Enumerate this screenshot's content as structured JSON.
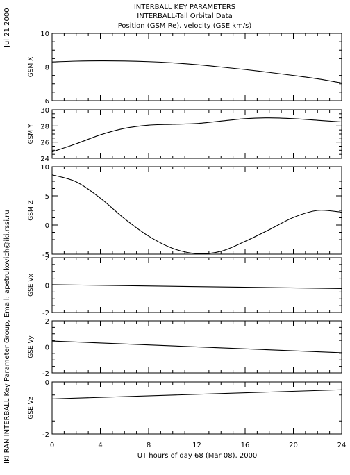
{
  "header": {
    "line1": "INTERBALL KEY PARAMETERS",
    "line2": "INTERBALL-Tail Orbital Data",
    "line3": "Position (GSM Re), velocity (GSE km/s)"
  },
  "side": {
    "date": "Jul 21 2000",
    "credit": "IKI RAN INTERBALL Key Parameter Group, Email: apetrukovich@iki.rssi.ru"
  },
  "chart_data": {
    "type": "line",
    "xlabel": "UT hours of day  68 (Mar 08), 2000",
    "xlim": [
      0,
      24
    ],
    "xticks": [
      0,
      4,
      8,
      12,
      16,
      20,
      24
    ],
    "panels": [
      {
        "ylabel": "GSM X",
        "ylim": [
          6,
          10
        ],
        "yticks": [
          6,
          8,
          10
        ],
        "x": [
          0,
          2,
          4,
          6,
          8,
          10,
          12,
          14,
          16,
          18,
          20,
          22,
          24
        ],
        "y": [
          8.3,
          8.35,
          8.37,
          8.36,
          8.32,
          8.25,
          8.14,
          8.0,
          7.85,
          7.68,
          7.5,
          7.3,
          7.05
        ]
      },
      {
        "ylabel": "GSM Y",
        "ylim": [
          24,
          30
        ],
        "yticks": [
          24,
          26,
          28,
          30
        ],
        "x": [
          0,
          2,
          4,
          6,
          8,
          10,
          12,
          14,
          16,
          18,
          20,
          22,
          24
        ],
        "y": [
          24.8,
          25.8,
          26.9,
          27.7,
          28.1,
          28.2,
          28.3,
          28.6,
          28.9,
          29.0,
          28.9,
          28.7,
          28.5
        ]
      },
      {
        "ylabel": "GSM Z",
        "ylim": [
          -5,
          10
        ],
        "yticks": [
          -5,
          0,
          5,
          10
        ],
        "x": [
          0,
          2,
          4,
          6,
          8,
          10,
          12,
          14,
          16,
          18,
          20,
          22,
          24
        ],
        "y": [
          8.6,
          7.4,
          4.6,
          1.1,
          -1.9,
          -4.0,
          -4.9,
          -4.5,
          -2.8,
          -0.8,
          1.3,
          2.5,
          2.2
        ]
      },
      {
        "ylabel": "GSE Vx",
        "ylim": [
          -2,
          2
        ],
        "yticks": [
          -2,
          0,
          2
        ],
        "x": [
          0,
          24
        ],
        "y": [
          0.03,
          -0.25
        ]
      },
      {
        "ylabel": "GSE Vy",
        "ylim": [
          -2,
          2
        ],
        "yticks": [
          -2,
          0,
          2
        ],
        "x": [
          0,
          24
        ],
        "y": [
          0.45,
          -0.45
        ]
      },
      {
        "ylabel": "GSE Vz",
        "ylim": [
          -2,
          0
        ],
        "yticks": [
          -2,
          0
        ],
        "x": [
          0,
          24
        ],
        "y": [
          -0.65,
          -0.3
        ]
      }
    ]
  }
}
